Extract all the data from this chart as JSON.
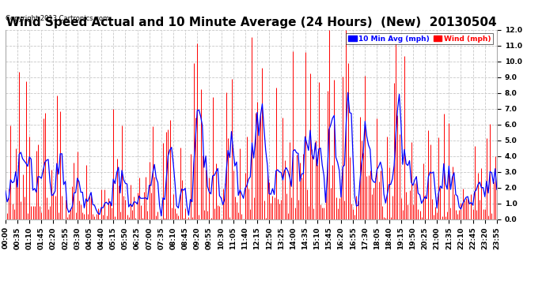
{
  "title": "Wind Speed Actual and 10 Minute Average (24 Hours)  (New)  20130504",
  "copyright": "Copyright 2013 Cartronics.com",
  "legend_labels": [
    "10 Min Avg (mph)",
    "Wind (mph)"
  ],
  "ylim": [
    0.0,
    12.0
  ],
  "yticks": [
    0.0,
    1.0,
    2.0,
    3.0,
    4.0,
    5.0,
    6.0,
    7.0,
    8.0,
    9.0,
    10.0,
    11.0,
    12.0
  ],
  "background_color": "#ffffff",
  "grid_color": "#c8c8c8",
  "bar_color": "red",
  "line_color": "blue",
  "title_fontsize": 11,
  "tick_fontsize": 6.5,
  "seed": 123,
  "n_points": 288
}
